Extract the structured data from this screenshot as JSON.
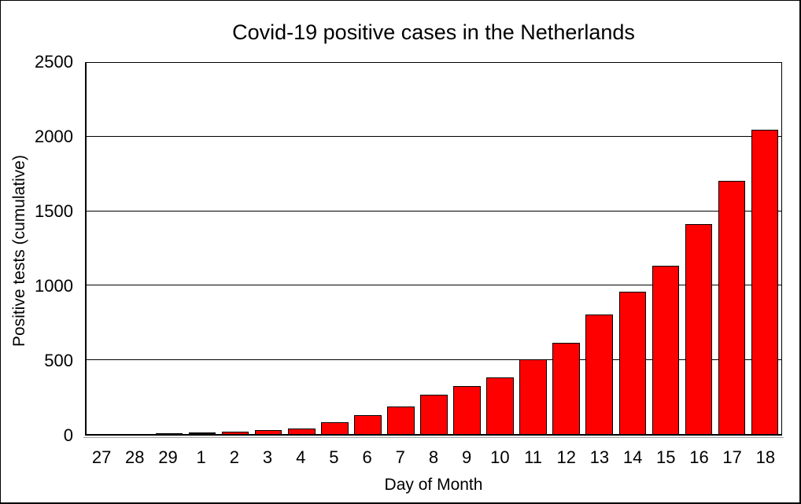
{
  "window": {
    "background_color": "#FFFFFF",
    "border_color": "#000000"
  },
  "chart_data": {
    "type": "bar",
    "title": "Covid-19 positive cases in the Netherlands",
    "xlabel": "Day of Month",
    "ylabel": "Positive tests (cumulative)",
    "categories": [
      "27",
      "28",
      "29",
      "1",
      "2",
      "3",
      "4",
      "5",
      "6",
      "7",
      "8",
      "9",
      "10",
      "11",
      "12",
      "13",
      "14",
      "15",
      "16",
      "17",
      "18"
    ],
    "values": [
      1,
      2,
      7,
      10,
      18,
      24,
      38,
      82,
      128,
      188,
      265,
      321,
      382,
      503,
      614,
      804,
      959,
      1135,
      1413,
      1705,
      2051
    ],
    "ylim": [
      0,
      2500
    ],
    "ytick_values": [
      0,
      500,
      1000,
      1500,
      2000,
      2500
    ],
    "yticks": [
      "0",
      "500",
      "1000",
      "1500",
      "2000",
      "2500"
    ],
    "gridline_values": [
      500,
      1000,
      1500,
      2000
    ],
    "grid": "horizontal",
    "legend": "none",
    "bar_color": "#FF0000",
    "bar_border_color": "#000000",
    "text_color": "#000000"
  }
}
